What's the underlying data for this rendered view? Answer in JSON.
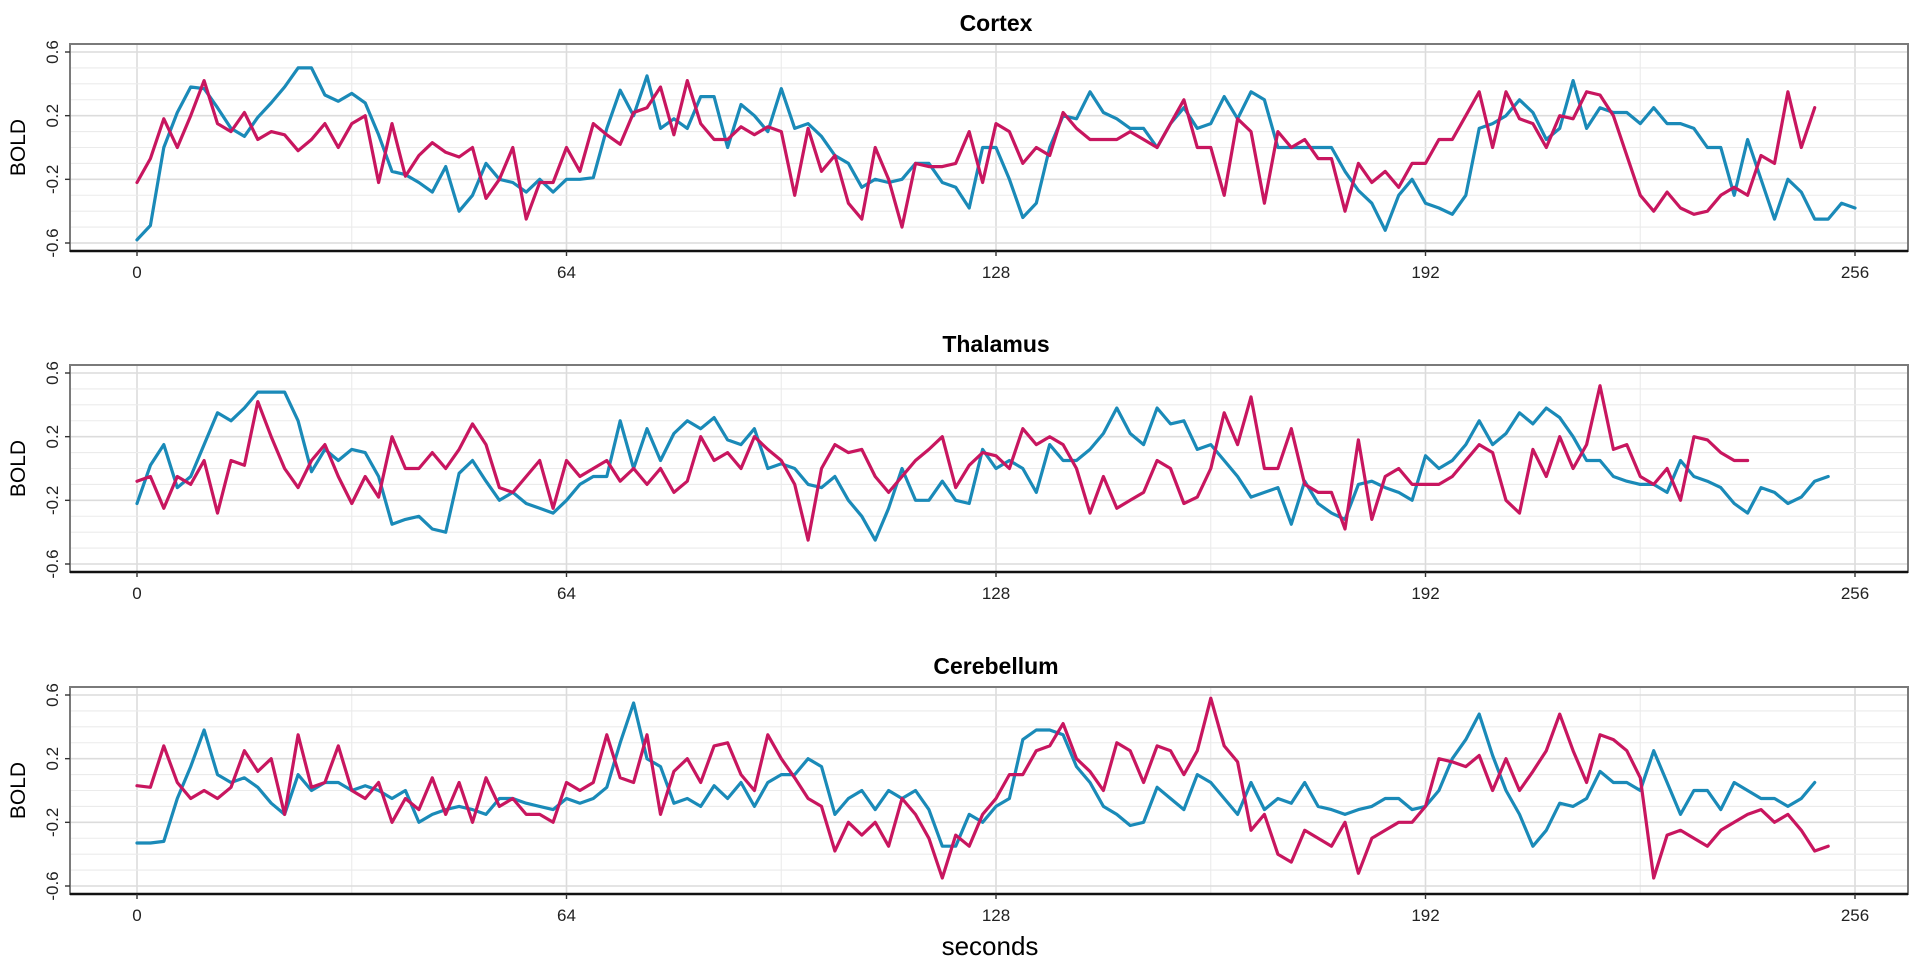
{
  "chart_data": [
    {
      "type": "line",
      "title": "Cortex",
      "xlabel": "",
      "ylabel": "BOLD",
      "xlim": [
        0,
        256
      ],
      "ylim": [
        -0.6,
        0.6
      ],
      "x_ticks": [
        0,
        64,
        128,
        192,
        256
      ],
      "y_ticks": [
        "0.6",
        "0.2",
        "-0.2",
        "-0.6"
      ],
      "y_tick_values": [
        0.6,
        0.2,
        -0.2,
        -0.6
      ],
      "x_step": 2,
      "series": [
        {
          "name": "teal",
          "color": "#1a8ab8",
          "values": [
            -0.58,
            -0.49,
            0.0,
            0.22,
            0.38,
            0.37,
            0.25,
            0.12,
            0.07,
            0.19,
            0.28,
            0.38,
            0.5,
            0.5,
            0.33,
            0.29,
            0.34,
            0.28,
            0.08,
            -0.15,
            -0.17,
            -0.22,
            -0.28,
            -0.12,
            -0.4,
            -0.3,
            -0.1,
            -0.2,
            -0.22,
            -0.28,
            -0.2,
            -0.28,
            -0.2,
            -0.2,
            -0.19,
            0.12,
            0.36,
            0.2,
            0.45,
            0.12,
            0.18,
            0.12,
            0.32,
            0.32,
            0.0,
            0.27,
            0.2,
            0.1,
            0.37,
            0.12,
            0.15,
            0.07,
            -0.05,
            -0.1,
            -0.25,
            -0.2,
            -0.22,
            -0.2,
            -0.1,
            -0.1,
            -0.22,
            -0.25,
            -0.38,
            0.0,
            0.0,
            -0.2,
            -0.44,
            -0.35,
            0.0,
            0.2,
            0.18,
            0.35,
            0.22,
            0.18,
            0.12,
            0.12,
            0.0,
            0.15,
            0.25,
            0.12,
            0.15,
            0.32,
            0.18,
            0.35,
            0.3,
            0.0,
            0.0,
            0.0,
            0.0,
            0.0,
            -0.15,
            -0.27,
            -0.35,
            -0.52,
            -0.3,
            -0.2,
            -0.35,
            -0.38,
            -0.42,
            -0.3,
            0.12,
            0.15,
            0.2,
            0.3,
            0.22,
            0.05,
            0.12,
            0.42,
            0.12,
            0.25,
            0.22,
            0.22,
            0.15,
            0.25,
            0.15,
            0.15,
            0.12,
            0.0,
            0.0,
            -0.3,
            0.05,
            -0.2,
            -0.45,
            -0.2,
            -0.28,
            -0.45,
            -0.45,
            -0.35,
            -0.38
          ]
        },
        {
          "name": "magenta",
          "color": "#c8165f",
          "values": [
            -0.22,
            -0.07,
            0.18,
            0.0,
            0.2,
            0.42,
            0.15,
            0.1,
            0.22,
            0.05,
            0.1,
            0.08,
            -0.02,
            0.05,
            0.15,
            0.0,
            0.15,
            0.2,
            -0.22,
            0.15,
            -0.18,
            -0.05,
            0.03,
            -0.03,
            -0.06,
            0.0,
            -0.32,
            -0.2,
            0.0,
            -0.45,
            -0.22,
            -0.22,
            0.0,
            -0.15,
            0.15,
            0.08,
            0.02,
            0.22,
            0.25,
            0.38,
            0.08,
            0.42,
            0.15,
            0.05,
            0.05,
            0.13,
            0.08,
            0.13,
            0.1,
            -0.3,
            0.12,
            -0.15,
            -0.05,
            -0.35,
            -0.45,
            0.0,
            -0.2,
            -0.5,
            -0.1,
            -0.12,
            -0.12,
            -0.1,
            0.1,
            -0.22,
            0.15,
            0.1,
            -0.1,
            0.0,
            -0.05,
            0.22,
            0.12,
            0.05,
            0.05,
            0.05,
            0.1,
            0.05,
            0.0,
            0.15,
            0.3,
            0.0,
            0.0,
            -0.3,
            0.18,
            0.1,
            -0.35,
            0.1,
            0.0,
            0.05,
            -0.07,
            -0.07,
            -0.4,
            -0.1,
            -0.22,
            -0.15,
            -0.25,
            -0.1,
            -0.1,
            0.05,
            0.05,
            0.2,
            0.35,
            0.0,
            0.35,
            0.18,
            0.15,
            0.0,
            0.2,
            0.18,
            0.35,
            0.33,
            0.2,
            -0.05,
            -0.3,
            -0.4,
            -0.28,
            -0.38,
            -0.42,
            -0.4,
            -0.3,
            -0.25,
            -0.3,
            -0.05,
            -0.1,
            0.35,
            0.0,
            0.25
          ]
        }
      ]
    },
    {
      "type": "line",
      "title": "Thalamus",
      "xlabel": "",
      "ylabel": "BOLD",
      "xlim": [
        0,
        256
      ],
      "ylim": [
        -0.6,
        0.6
      ],
      "x_ticks": [
        0,
        64,
        128,
        192,
        256
      ],
      "y_ticks": [
        "0.6",
        "0.2",
        "-0.2",
        "-0.6"
      ],
      "y_tick_values": [
        0.6,
        0.2,
        -0.2,
        -0.6
      ],
      "x_step": 2,
      "series": [
        {
          "name": "teal",
          "color": "#1a8ab8",
          "values": [
            -0.22,
            0.02,
            0.15,
            -0.12,
            -0.05,
            0.15,
            0.35,
            0.3,
            0.38,
            0.48,
            0.48,
            0.48,
            0.3,
            -0.02,
            0.12,
            0.05,
            0.12,
            0.1,
            -0.05,
            -0.35,
            -0.32,
            -0.3,
            -0.38,
            -0.4,
            -0.03,
            0.05,
            -0.08,
            -0.2,
            -0.15,
            -0.22,
            -0.25,
            -0.28,
            -0.2,
            -0.1,
            -0.05,
            -0.05,
            0.3,
            0.0,
            0.25,
            0.05,
            0.22,
            0.3,
            0.25,
            0.32,
            0.18,
            0.15,
            0.25,
            0.0,
            0.03,
            0.0,
            -0.1,
            -0.12,
            -0.05,
            -0.2,
            -0.3,
            -0.45,
            -0.25,
            0.0,
            -0.2,
            -0.2,
            -0.08,
            -0.2,
            -0.22,
            0.12,
            0.0,
            0.05,
            0.0,
            -0.15,
            0.15,
            0.05,
            0.05,
            0.12,
            0.22,
            0.38,
            0.22,
            0.15,
            0.38,
            0.28,
            0.3,
            0.12,
            0.15,
            0.05,
            -0.05,
            -0.18,
            -0.15,
            -0.12,
            -0.35,
            -0.08,
            -0.22,
            -0.28,
            -0.32,
            -0.1,
            -0.08,
            -0.12,
            -0.15,
            -0.2,
            0.08,
            0.0,
            0.05,
            0.15,
            0.3,
            0.15,
            0.22,
            0.35,
            0.28,
            0.38,
            0.32,
            0.2,
            0.05,
            0.05,
            -0.05,
            -0.08,
            -0.1,
            -0.1,
            -0.15,
            0.05,
            -0.05,
            -0.08,
            -0.12,
            -0.22,
            -0.28,
            -0.12,
            -0.15,
            -0.22,
            -0.18,
            -0.08,
            -0.05
          ]
        },
        {
          "name": "magenta",
          "color": "#c8165f",
          "values": [
            -0.08,
            -0.05,
            -0.25,
            -0.05,
            -0.1,
            0.05,
            -0.28,
            0.05,
            0.02,
            0.42,
            0.2,
            0.0,
            -0.12,
            0.05,
            0.15,
            -0.05,
            -0.22,
            -0.05,
            -0.18,
            0.2,
            0.0,
            0.0,
            0.1,
            0.0,
            0.12,
            0.28,
            0.15,
            -0.12,
            -0.15,
            -0.05,
            0.05,
            -0.25,
            0.05,
            -0.05,
            0.0,
            0.05,
            -0.08,
            0.0,
            -0.1,
            0.0,
            -0.15,
            -0.08,
            0.2,
            0.05,
            0.1,
            0.0,
            0.2,
            0.12,
            0.05,
            -0.1,
            -0.45,
            0.0,
            0.15,
            0.1,
            0.12,
            -0.05,
            -0.15,
            -0.05,
            0.05,
            0.12,
            0.2,
            -0.12,
            0.02,
            0.1,
            0.08,
            0.0,
            0.25,
            0.15,
            0.2,
            0.15,
            0.0,
            -0.28,
            -0.05,
            -0.25,
            -0.2,
            -0.15,
            0.05,
            0.0,
            -0.22,
            -0.18,
            0.0,
            0.35,
            0.15,
            0.45,
            0.0,
            0.0,
            0.25,
            -0.1,
            -0.15,
            -0.15,
            -0.38,
            0.18,
            -0.32,
            -0.05,
            0.0,
            -0.1,
            -0.1,
            -0.1,
            -0.05,
            0.05,
            0.15,
            0.1,
            -0.2,
            -0.28,
            0.12,
            -0.05,
            0.2,
            0.0,
            0.15,
            0.52,
            0.12,
            0.15,
            -0.05,
            -0.1,
            0.0,
            -0.2,
            0.2,
            0.18,
            0.1,
            0.05,
            0.05
          ]
        }
      ]
    },
    {
      "type": "line",
      "title": "Cerebellum",
      "xlabel": "seconds",
      "ylabel": "BOLD",
      "xlim": [
        0,
        256
      ],
      "ylim": [
        -0.6,
        0.6
      ],
      "x_ticks": [
        0,
        64,
        128,
        192,
        256
      ],
      "y_ticks": [
        "0.6",
        "0.2",
        "-0.2",
        "-0.6"
      ],
      "y_tick_values": [
        0.6,
        0.2,
        -0.2,
        -0.6
      ],
      "x_step": 2,
      "series": [
        {
          "name": "teal",
          "color": "#1a8ab8",
          "values": [
            -0.33,
            -0.33,
            -0.32,
            -0.05,
            0.15,
            0.38,
            0.1,
            0.05,
            0.08,
            0.02,
            -0.08,
            -0.15,
            0.1,
            0.0,
            0.05,
            0.05,
            0.0,
            0.03,
            0.0,
            -0.05,
            0.0,
            -0.2,
            -0.15,
            -0.12,
            -0.1,
            -0.12,
            -0.15,
            -0.05,
            -0.05,
            -0.08,
            -0.1,
            -0.12,
            -0.05,
            -0.08,
            -0.05,
            0.02,
            0.3,
            0.55,
            0.2,
            0.15,
            -0.08,
            -0.05,
            -0.1,
            0.03,
            -0.05,
            0.05,
            -0.1,
            0.05,
            0.1,
            0.1,
            0.2,
            0.15,
            -0.15,
            -0.05,
            0.0,
            -0.12,
            0.0,
            -0.05,
            0.0,
            -0.12,
            -0.35,
            -0.35,
            -0.15,
            -0.2,
            -0.1,
            -0.05,
            0.32,
            0.38,
            0.38,
            0.35,
            0.15,
            0.05,
            -0.1,
            -0.15,
            -0.22,
            -0.2,
            0.02,
            -0.05,
            -0.12,
            0.1,
            0.05,
            -0.05,
            -0.15,
            0.05,
            -0.12,
            -0.05,
            -0.08,
            0.05,
            -0.1,
            -0.12,
            -0.15,
            -0.12,
            -0.1,
            -0.05,
            -0.05,
            -0.12,
            -0.1,
            0.0,
            0.2,
            0.32,
            0.48,
            0.22,
            0.0,
            -0.15,
            -0.35,
            -0.25,
            -0.08,
            -0.1,
            -0.05,
            0.12,
            0.05,
            0.05,
            0.0,
            0.25,
            0.05,
            -0.15,
            0.0,
            0.0,
            -0.12,
            0.05,
            0.0,
            -0.05,
            -0.05,
            -0.1,
            -0.05,
            0.05
          ]
        },
        {
          "name": "magenta",
          "color": "#c8165f",
          "values": [
            0.03,
            0.02,
            0.28,
            0.05,
            -0.05,
            0.0,
            -0.05,
            0.02,
            0.25,
            0.12,
            0.2,
            -0.15,
            0.35,
            0.02,
            0.05,
            0.28,
            0.0,
            -0.05,
            0.05,
            -0.2,
            -0.05,
            -0.12,
            0.08,
            -0.15,
            0.05,
            -0.2,
            0.08,
            -0.1,
            -0.05,
            -0.15,
            -0.15,
            -0.2,
            0.05,
            0.0,
            0.05,
            0.35,
            0.08,
            0.05,
            0.35,
            -0.15,
            0.12,
            0.2,
            0.05,
            0.28,
            0.3,
            0.1,
            0.0,
            0.35,
            0.2,
            0.08,
            -0.05,
            -0.1,
            -0.38,
            -0.2,
            -0.28,
            -0.2,
            -0.35,
            -0.05,
            -0.15,
            -0.3,
            -0.55,
            -0.28,
            -0.35,
            -0.15,
            -0.05,
            0.1,
            0.1,
            0.25,
            0.28,
            0.42,
            0.2,
            0.12,
            0.0,
            0.3,
            0.25,
            0.05,
            0.28,
            0.25,
            0.1,
            0.25,
            0.58,
            0.28,
            0.18,
            -0.25,
            -0.15,
            -0.4,
            -0.45,
            -0.25,
            -0.3,
            -0.35,
            -0.2,
            -0.52,
            -0.3,
            -0.25,
            -0.2,
            -0.2,
            -0.1,
            0.2,
            0.18,
            0.15,
            0.22,
            0.0,
            0.2,
            0.0,
            0.12,
            0.25,
            0.48,
            0.25,
            0.05,
            0.35,
            0.32,
            0.25,
            0.08,
            -0.55,
            -0.28,
            -0.25,
            -0.3,
            -0.35,
            -0.25,
            -0.2,
            -0.15,
            -0.12,
            -0.2,
            -0.15,
            -0.25,
            -0.38,
            -0.35
          ]
        }
      ]
    }
  ]
}
